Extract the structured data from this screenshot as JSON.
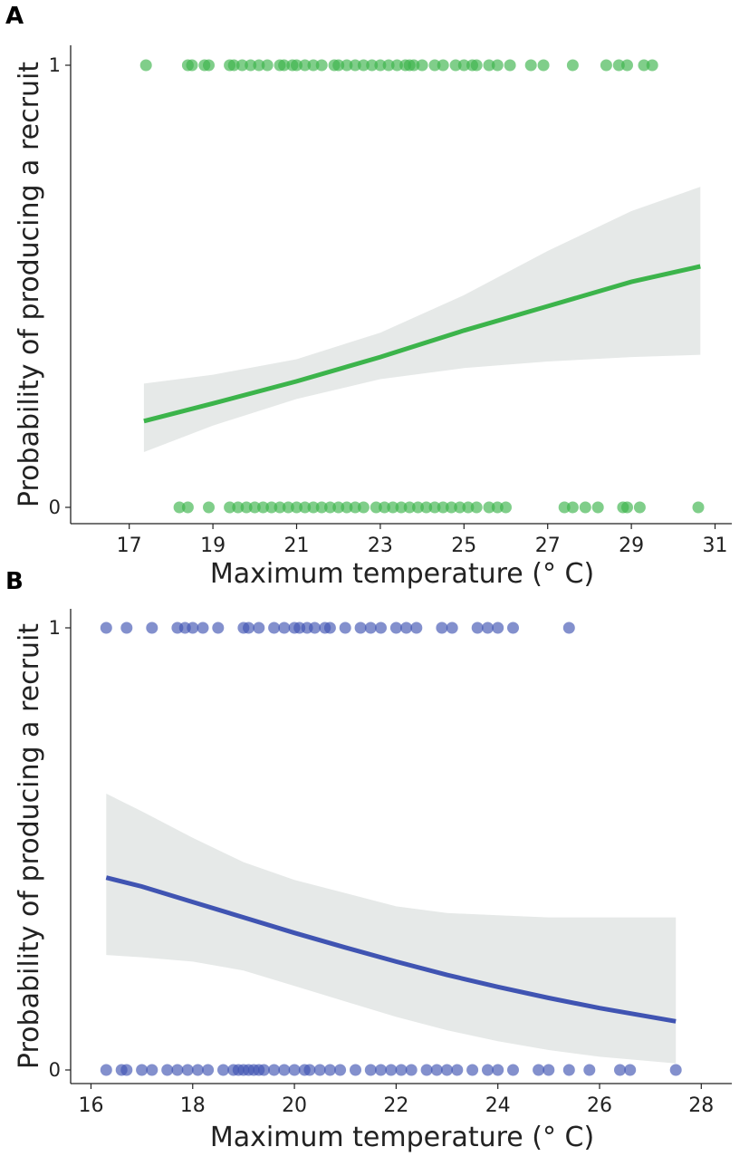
{
  "chart_data": [
    {
      "panel": "A",
      "type": "scatter",
      "title": "",
      "xlabel": "Maximum temperature (° C)",
      "ylabel": "Probability of producing a recruit",
      "xlim": [
        15.6,
        31.4
      ],
      "ylim": [
        -0.02,
        1.02
      ],
      "xticks": [
        "17",
        "19",
        "21",
        "23",
        "25",
        "27",
        "29",
        "31"
      ],
      "yticks": [
        "0",
        "1"
      ],
      "point_color": "#3cb44b",
      "line_color": "#3cb44b",
      "band_color": "#e6e9e8",
      "points_y1": [
        17.4,
        18.4,
        18.5,
        18.8,
        18.9,
        19.4,
        19.5,
        19.7,
        19.9,
        20.1,
        20.3,
        20.6,
        20.7,
        20.9,
        21.0,
        21.2,
        21.4,
        21.6,
        21.9,
        22.0,
        22.2,
        22.4,
        22.6,
        22.8,
        23.0,
        23.2,
        23.4,
        23.6,
        23.7,
        23.8,
        24.0,
        24.3,
        24.5,
        24.8,
        25.0,
        25.2,
        25.3,
        25.6,
        25.8,
        26.1,
        26.6,
        26.9,
        27.6,
        28.4,
        28.7,
        28.9,
        29.3,
        29.5
      ],
      "points_y0": [
        18.2,
        18.4,
        18.9,
        19.4,
        19.6,
        19.8,
        20.0,
        20.2,
        20.4,
        20.6,
        20.8,
        21.0,
        21.2,
        21.4,
        21.6,
        21.8,
        22.0,
        22.2,
        22.4,
        22.6,
        22.9,
        23.1,
        23.3,
        23.5,
        23.7,
        23.9,
        24.1,
        24.3,
        24.5,
        24.7,
        24.9,
        25.1,
        25.3,
        25.6,
        25.8,
        26.0,
        27.4,
        27.6,
        27.9,
        28.2,
        28.8,
        28.9,
        29.2,
        30.6
      ],
      "fit": {
        "x": [
          17.35,
          19,
          21,
          23,
          25,
          27,
          29,
          30.65
        ],
        "y": [
          0.195,
          0.235,
          0.285,
          0.34,
          0.4,
          0.455,
          0.51,
          0.545
        ],
        "lower": [
          0.125,
          0.185,
          0.245,
          0.29,
          0.315,
          0.33,
          0.34,
          0.345
        ],
        "upper": [
          0.28,
          0.3,
          0.335,
          0.395,
          0.48,
          0.58,
          0.67,
          0.725
        ]
      }
    },
    {
      "panel": "B",
      "type": "scatter",
      "title": "",
      "xlabel": "Maximum temperature (° C)",
      "ylabel": "Probability of producing a recruit",
      "xlim": [
        15.6,
        28.6
      ],
      "ylim": [
        -0.02,
        1.02
      ],
      "xticks": [
        "16",
        "18",
        "20",
        "22",
        "24",
        "26",
        "28"
      ],
      "yticks": [
        "0",
        "1"
      ],
      "point_color": "#4054b2",
      "line_color": "#4054b2",
      "band_color": "#e6e9e8",
      "points_y1": [
        16.3,
        16.7,
        17.2,
        17.7,
        17.85,
        18.0,
        18.2,
        18.5,
        19.0,
        19.1,
        19.3,
        19.6,
        19.8,
        20.0,
        20.1,
        20.25,
        20.4,
        20.6,
        20.7,
        21.0,
        21.3,
        21.5,
        21.7,
        22.0,
        22.2,
        22.4,
        22.9,
        23.1,
        23.6,
        23.8,
        24.0,
        24.3,
        25.4
      ],
      "points_y0": [
        16.3,
        16.6,
        16.7,
        17.0,
        17.2,
        17.5,
        17.7,
        17.9,
        18.1,
        18.3,
        18.6,
        18.8,
        18.9,
        19.0,
        19.1,
        19.2,
        19.3,
        19.4,
        19.6,
        19.8,
        20.0,
        20.2,
        20.3,
        20.5,
        20.7,
        20.9,
        21.2,
        21.5,
        21.7,
        21.9,
        22.1,
        22.3,
        22.6,
        22.8,
        23.0,
        23.2,
        23.5,
        23.8,
        24.0,
        24.3,
        24.8,
        25.0,
        25.4,
        25.8,
        26.4,
        26.6,
        27.5
      ],
      "fit": {
        "x": [
          16.3,
          17,
          18,
          19,
          20,
          21,
          22,
          23,
          24,
          25,
          26,
          27.5
        ],
        "y": [
          0.435,
          0.415,
          0.38,
          0.345,
          0.31,
          0.277,
          0.245,
          0.215,
          0.188,
          0.163,
          0.14,
          0.11
        ],
        "lower": [
          0.26,
          0.255,
          0.245,
          0.225,
          0.19,
          0.155,
          0.12,
          0.09,
          0.065,
          0.045,
          0.03,
          0.015
        ],
        "upper": [
          0.625,
          0.585,
          0.525,
          0.47,
          0.43,
          0.4,
          0.37,
          0.355,
          0.35,
          0.345,
          0.345,
          0.345
        ]
      }
    }
  ]
}
